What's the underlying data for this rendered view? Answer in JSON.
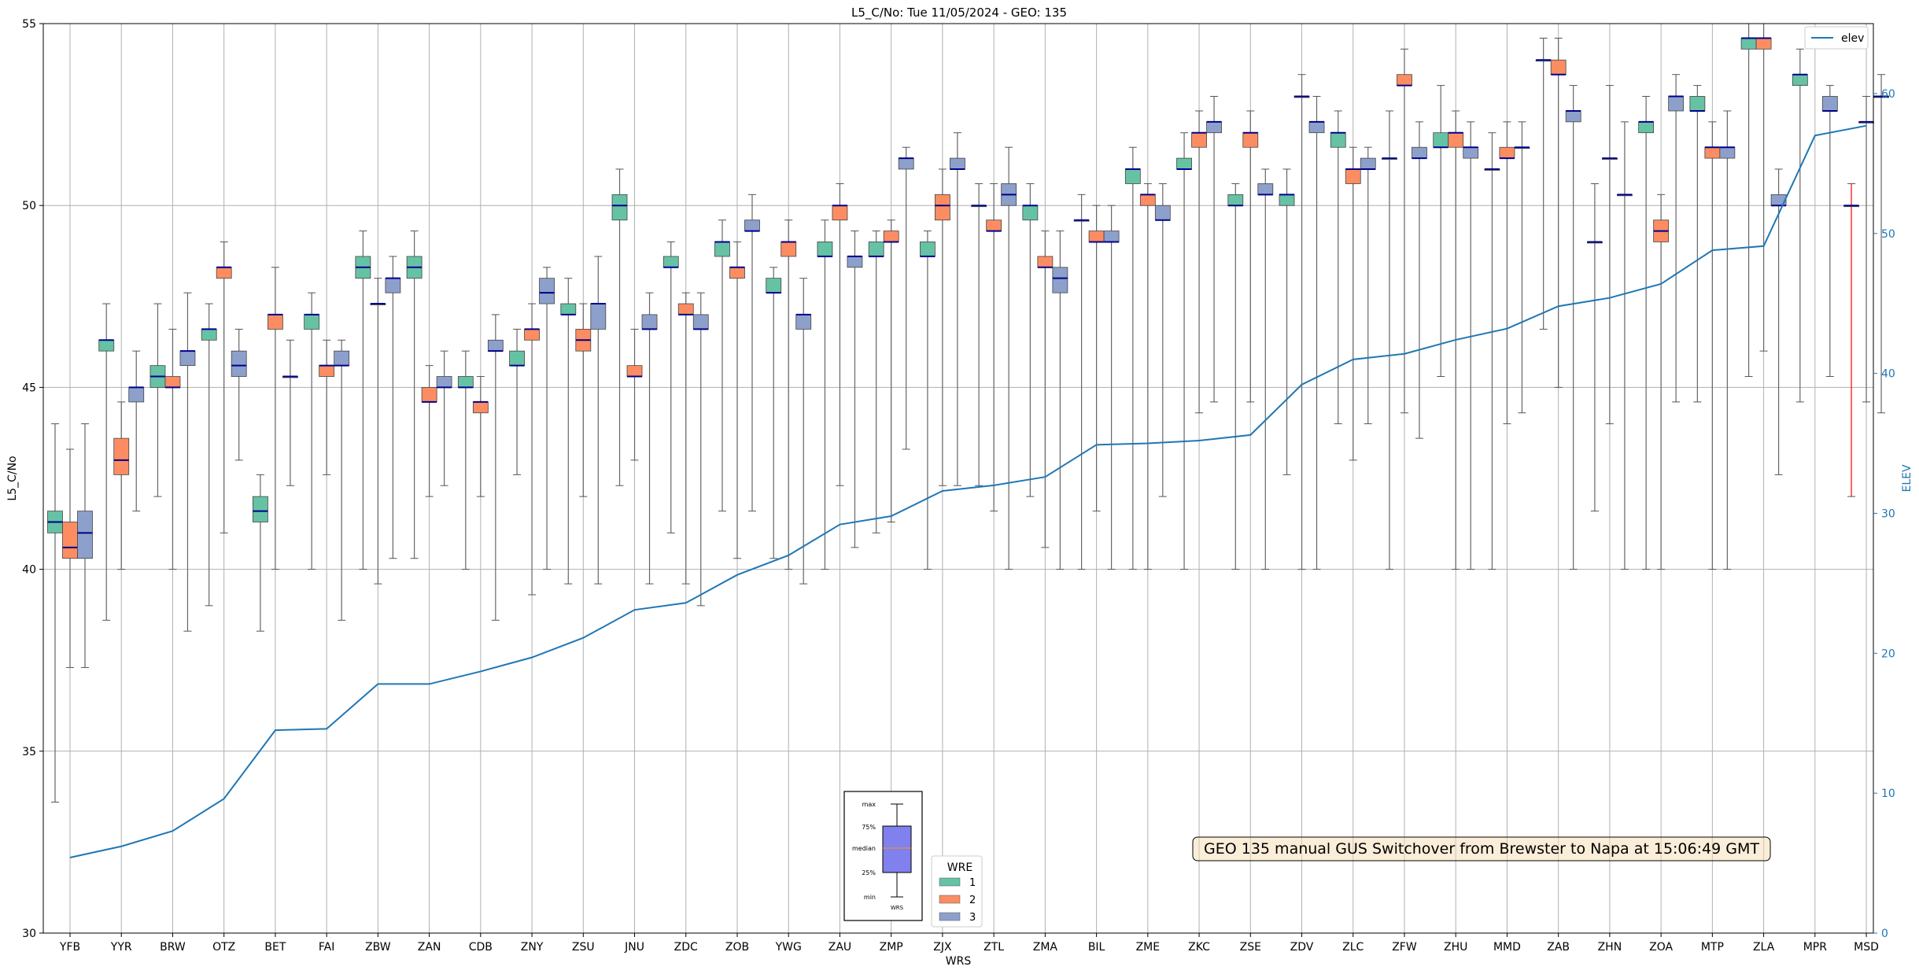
{
  "chart_data": {
    "type": "box",
    "title": "L5_C/No: Tue 11/05/2024 - GEO: 135",
    "xlabel": "WRS",
    "ylabel": "L5_C/No",
    "y2label": "ELEV",
    "ylim": [
      30,
      55
    ],
    "y2lim": [
      0,
      65
    ],
    "yticks": [
      30,
      35,
      40,
      45,
      50,
      55
    ],
    "y2ticks": [
      0,
      10,
      20,
      30,
      40,
      50,
      60
    ],
    "grid": true,
    "colors": {
      "1": "#66c2a5",
      "2": "#fc8d62",
      "3": "#8da0cb",
      "elev": "#1f77b4",
      "median": "#00008b",
      "msd_whisker": "#ff0000"
    },
    "categories": [
      "YFB",
      "YYR",
      "BRW",
      "OTZ",
      "BET",
      "FAI",
      "ZBW",
      "ZAN",
      "CDB",
      "ZNY",
      "ZSU",
      "JNU",
      "ZDC",
      "ZOB",
      "YWG",
      "ZAU",
      "ZMP",
      "ZJX",
      "ZTL",
      "ZMA",
      "BIL",
      "ZME",
      "ZKC",
      "ZSE",
      "ZDV",
      "ZLC",
      "ZFW",
      "ZHU",
      "MMD",
      "ZAB",
      "ZHN",
      "ZOA",
      "MTP",
      "ZLA",
      "MPR",
      "MSD"
    ],
    "elev": [
      5.4,
      6.2,
      7.3,
      9.6,
      14.5,
      14.6,
      17.8,
      17.8,
      18.7,
      19.7,
      21.1,
      23.1,
      23.6,
      25.6,
      27.0,
      29.2,
      29.8,
      31.6,
      32.0,
      32.6,
      34.9,
      35.0,
      35.2,
      35.6,
      39.2,
      41.0,
      41.4,
      42.4,
      43.2,
      44.8,
      45.4,
      46.4,
      48.8,
      49.1,
      57.0,
      57.7
    ],
    "boxes": [
      {
        "station": "YFB",
        "wre": 1,
        "min": 33.6,
        "q1": 41.0,
        "med": 41.3,
        "q3": 41.6,
        "max": 44.0
      },
      {
        "station": "YFB",
        "wre": 2,
        "min": 37.3,
        "q1": 40.3,
        "med": 40.6,
        "q3": 41.3,
        "max": 43.3
      },
      {
        "station": "YFB",
        "wre": 3,
        "min": 37.3,
        "q1": 40.3,
        "med": 41.0,
        "q3": 41.6,
        "max": 44.0
      },
      {
        "station": "YYR",
        "wre": 1,
        "min": 38.6,
        "q1": 46.0,
        "med": 46.3,
        "q3": 46.3,
        "max": 47.3
      },
      {
        "station": "YYR",
        "wre": 2,
        "min": 40.0,
        "q1": 42.6,
        "med": 43.0,
        "q3": 43.6,
        "max": 44.6
      },
      {
        "station": "YYR",
        "wre": 3,
        "min": 41.6,
        "q1": 44.6,
        "med": 45.0,
        "q3": 45.0,
        "max": 46.0
      },
      {
        "station": "BRW",
        "wre": 1,
        "min": 42.0,
        "q1": 45.0,
        "med": 45.3,
        "q3": 45.6,
        "max": 47.3
      },
      {
        "station": "BRW",
        "wre": 2,
        "min": 40.0,
        "q1": 45.0,
        "med": 45.0,
        "q3": 45.3,
        "max": 46.6
      },
      {
        "station": "BRW",
        "wre": 3,
        "min": 38.3,
        "q1": 45.6,
        "med": 46.0,
        "q3": 46.0,
        "max": 47.6
      },
      {
        "station": "OTZ",
        "wre": 1,
        "min": 39.0,
        "q1": 46.3,
        "med": 46.6,
        "q3": 46.6,
        "max": 47.3
      },
      {
        "station": "OTZ",
        "wre": 2,
        "min": 41.0,
        "q1": 48.0,
        "med": 48.3,
        "q3": 48.3,
        "max": 49.0
      },
      {
        "station": "OTZ",
        "wre": 3,
        "min": 43.0,
        "q1": 45.3,
        "med": 45.6,
        "q3": 46.0,
        "max": 46.6
      },
      {
        "station": "BET",
        "wre": 1,
        "min": 38.3,
        "q1": 41.3,
        "med": 41.6,
        "q3": 42.0,
        "max": 42.6
      },
      {
        "station": "BET",
        "wre": 2,
        "min": 40.0,
        "q1": 46.6,
        "med": 47.0,
        "q3": 47.0,
        "max": 48.3
      },
      {
        "station": "BET",
        "wre": 3,
        "min": 42.3,
        "q1": 45.3,
        "med": 45.3,
        "q3": 45.3,
        "max": 46.3
      },
      {
        "station": "FAI",
        "wre": 1,
        "min": 40.0,
        "q1": 46.6,
        "med": 47.0,
        "q3": 47.0,
        "max": 47.6
      },
      {
        "station": "FAI",
        "wre": 2,
        "min": 42.6,
        "q1": 45.3,
        "med": 45.6,
        "q3": 45.6,
        "max": 46.3
      },
      {
        "station": "FAI",
        "wre": 3,
        "min": 38.6,
        "q1": 45.6,
        "med": 45.6,
        "q3": 46.0,
        "max": 46.3
      },
      {
        "station": "ZBW",
        "wre": 1,
        "min": 40.0,
        "q1": 48.0,
        "med": 48.3,
        "q3": 48.6,
        "max": 49.3
      },
      {
        "station": "ZBW",
        "wre": 2,
        "min": 39.6,
        "q1": 47.3,
        "med": 47.3,
        "q3": 47.3,
        "max": 48.0
      },
      {
        "station": "ZBW",
        "wre": 3,
        "min": 40.3,
        "q1": 47.6,
        "med": 48.0,
        "q3": 48.0,
        "max": 48.6
      },
      {
        "station": "ZAN",
        "wre": 1,
        "min": 40.3,
        "q1": 48.0,
        "med": 48.3,
        "q3": 48.6,
        "max": 49.3
      },
      {
        "station": "ZAN",
        "wre": 2,
        "min": 42.0,
        "q1": 44.6,
        "med": 44.6,
        "q3": 45.0,
        "max": 45.6
      },
      {
        "station": "ZAN",
        "wre": 3,
        "min": 42.3,
        "q1": 45.0,
        "med": 45.0,
        "q3": 45.3,
        "max": 46.0
      },
      {
        "station": "CDB",
        "wre": 1,
        "min": 40.0,
        "q1": 45.0,
        "med": 45.0,
        "q3": 45.3,
        "max": 46.0
      },
      {
        "station": "CDB",
        "wre": 2,
        "min": 42.0,
        "q1": 44.3,
        "med": 44.6,
        "q3": 44.6,
        "max": 45.3
      },
      {
        "station": "CDB",
        "wre": 3,
        "min": 38.6,
        "q1": 46.0,
        "med": 46.0,
        "q3": 46.3,
        "max": 47.0
      },
      {
        "station": "ZNY",
        "wre": 1,
        "min": 42.6,
        "q1": 45.6,
        "med": 45.6,
        "q3": 46.0,
        "max": 46.6
      },
      {
        "station": "ZNY",
        "wre": 2,
        "min": 39.3,
        "q1": 46.3,
        "med": 46.6,
        "q3": 46.6,
        "max": 47.3
      },
      {
        "station": "ZNY",
        "wre": 3,
        "min": 40.0,
        "q1": 47.3,
        "med": 47.6,
        "q3": 48.0,
        "max": 48.3
      },
      {
        "station": "ZSU",
        "wre": 1,
        "min": 39.6,
        "q1": 47.0,
        "med": 47.0,
        "q3": 47.3,
        "max": 48.0
      },
      {
        "station": "ZSU",
        "wre": 2,
        "min": 42.0,
        "q1": 46.0,
        "med": 46.3,
        "q3": 46.6,
        "max": 47.3
      },
      {
        "station": "ZSU",
        "wre": 3,
        "min": 39.6,
        "q1": 46.6,
        "med": 47.3,
        "q3": 47.3,
        "max": 48.6
      },
      {
        "station": "JNU",
        "wre": 1,
        "min": 42.3,
        "q1": 49.6,
        "med": 50.0,
        "q3": 50.3,
        "max": 51.0
      },
      {
        "station": "JNU",
        "wre": 2,
        "min": 43.0,
        "q1": 45.3,
        "med": 45.3,
        "q3": 45.6,
        "max": 46.6
      },
      {
        "station": "JNU",
        "wre": 3,
        "min": 39.6,
        "q1": 46.6,
        "med": 46.6,
        "q3": 47.0,
        "max": 47.6
      },
      {
        "station": "ZDC",
        "wre": 1,
        "min": 41.0,
        "q1": 48.3,
        "med": 48.3,
        "q3": 48.6,
        "max": 49.0
      },
      {
        "station": "ZDC",
        "wre": 2,
        "min": 39.6,
        "q1": 47.0,
        "med": 47.0,
        "q3": 47.3,
        "max": 47.6
      },
      {
        "station": "ZDC",
        "wre": 3,
        "min": 39.0,
        "q1": 46.6,
        "med": 46.6,
        "q3": 47.0,
        "max": 47.6
      },
      {
        "station": "ZOB",
        "wre": 1,
        "min": 41.6,
        "q1": 48.6,
        "med": 49.0,
        "q3": 49.0,
        "max": 49.6
      },
      {
        "station": "ZOB",
        "wre": 2,
        "min": 40.3,
        "q1": 48.0,
        "med": 48.3,
        "q3": 48.3,
        "max": 49.0
      },
      {
        "station": "ZOB",
        "wre": 3,
        "min": 41.6,
        "q1": 49.3,
        "med": 49.3,
        "q3": 49.6,
        "max": 50.3
      },
      {
        "station": "YWG",
        "wre": 1,
        "min": 40.3,
        "q1": 47.6,
        "med": 47.6,
        "q3": 48.0,
        "max": 48.3
      },
      {
        "station": "YWG",
        "wre": 2,
        "min": 40.0,
        "q1": 48.6,
        "med": 49.0,
        "q3": 49.0,
        "max": 49.6
      },
      {
        "station": "YWG",
        "wre": 3,
        "min": 39.6,
        "q1": 46.6,
        "med": 47.0,
        "q3": 47.0,
        "max": 48.0
      },
      {
        "station": "ZAU",
        "wre": 1,
        "min": 40.0,
        "q1": 48.6,
        "med": 48.6,
        "q3": 49.0,
        "max": 49.6
      },
      {
        "station": "ZAU",
        "wre": 2,
        "min": 42.3,
        "q1": 49.6,
        "med": 50.0,
        "q3": 50.0,
        "max": 50.6
      },
      {
        "station": "ZAU",
        "wre": 3,
        "min": 40.6,
        "q1": 48.3,
        "med": 48.6,
        "q3": 48.6,
        "max": 49.3
      },
      {
        "station": "ZMP",
        "wre": 1,
        "min": 41.0,
        "q1": 48.6,
        "med": 48.6,
        "q3": 49.0,
        "max": 49.3
      },
      {
        "station": "ZMP",
        "wre": 2,
        "min": 41.3,
        "q1": 49.0,
        "med": 49.0,
        "q3": 49.3,
        "max": 49.6
      },
      {
        "station": "ZMP",
        "wre": 3,
        "min": 43.3,
        "q1": 51.0,
        "med": 51.3,
        "q3": 51.3,
        "max": 51.6
      },
      {
        "station": "ZJX",
        "wre": 1,
        "min": 40.0,
        "q1": 48.6,
        "med": 48.6,
        "q3": 49.0,
        "max": 49.3
      },
      {
        "station": "ZJX",
        "wre": 2,
        "min": 42.3,
        "q1": 49.6,
        "med": 50.0,
        "q3": 50.3,
        "max": 51.0
      },
      {
        "station": "ZJX",
        "wre": 3,
        "min": 42.3,
        "q1": 51.0,
        "med": 51.0,
        "q3": 51.3,
        "max": 52.0
      },
      {
        "station": "ZTL",
        "wre": 1,
        "min": 42.3,
        "q1": 50.0,
        "med": 50.0,
        "q3": 50.0,
        "max": 50.6
      },
      {
        "station": "ZTL",
        "wre": 2,
        "min": 41.6,
        "q1": 49.3,
        "med": 49.3,
        "q3": 49.6,
        "max": 50.6
      },
      {
        "station": "ZTL",
        "wre": 3,
        "min": 40.0,
        "q1": 50.0,
        "med": 50.3,
        "q3": 50.6,
        "max": 51.6
      },
      {
        "station": "ZMA",
        "wre": 1,
        "min": 42.0,
        "q1": 49.6,
        "med": 50.0,
        "q3": 50.0,
        "max": 50.6
      },
      {
        "station": "ZMA",
        "wre": 2,
        "min": 40.6,
        "q1": 48.3,
        "med": 48.3,
        "q3": 48.6,
        "max": 49.3
      },
      {
        "station": "ZMA",
        "wre": 3,
        "min": 40.0,
        "q1": 47.6,
        "med": 48.0,
        "q3": 48.3,
        "max": 49.3
      },
      {
        "station": "BIL",
        "wre": 1,
        "min": 40.0,
        "q1": 49.6,
        "med": 49.6,
        "q3": 49.6,
        "max": 50.3
      },
      {
        "station": "BIL",
        "wre": 2,
        "min": 41.6,
        "q1": 49.0,
        "med": 49.0,
        "q3": 49.3,
        "max": 50.0
      },
      {
        "station": "BIL",
        "wre": 3,
        "min": 40.0,
        "q1": 49.0,
        "med": 49.0,
        "q3": 49.3,
        "max": 50.0
      },
      {
        "station": "ZME",
        "wre": 1,
        "min": 40.0,
        "q1": 50.6,
        "med": 51.0,
        "q3": 51.0,
        "max": 51.6
      },
      {
        "station": "ZME",
        "wre": 2,
        "min": 40.0,
        "q1": 50.0,
        "med": 50.3,
        "q3": 50.3,
        "max": 50.6
      },
      {
        "station": "ZME",
        "wre": 3,
        "min": 42.0,
        "q1": 49.6,
        "med": 49.6,
        "q3": 50.0,
        "max": 50.6
      },
      {
        "station": "ZKC",
        "wre": 1,
        "min": 40.0,
        "q1": 51.0,
        "med": 51.0,
        "q3": 51.3,
        "max": 52.0
      },
      {
        "station": "ZKC",
        "wre": 2,
        "min": 44.3,
        "q1": 51.6,
        "med": 52.0,
        "q3": 52.0,
        "max": 52.6
      },
      {
        "station": "ZKC",
        "wre": 3,
        "min": 44.6,
        "q1": 52.0,
        "med": 52.3,
        "q3": 52.3,
        "max": 53.0
      },
      {
        "station": "ZSE",
        "wre": 1,
        "min": 40.0,
        "q1": 50.0,
        "med": 50.0,
        "q3": 50.3,
        "max": 50.6
      },
      {
        "station": "ZSE",
        "wre": 2,
        "min": 44.6,
        "q1": 51.6,
        "med": 52.0,
        "q3": 52.0,
        "max": 52.6
      },
      {
        "station": "ZSE",
        "wre": 3,
        "min": 40.0,
        "q1": 50.3,
        "med": 50.3,
        "q3": 50.6,
        "max": 51.0
      },
      {
        "station": "ZDV",
        "wre": 1,
        "min": 42.6,
        "q1": 50.0,
        "med": 50.3,
        "q3": 50.3,
        "max": 51.0
      },
      {
        "station": "ZDV",
        "wre": 2,
        "min": 40.0,
        "q1": 53.0,
        "med": 53.0,
        "q3": 53.0,
        "max": 53.6
      },
      {
        "station": "ZDV",
        "wre": 3,
        "min": 40.0,
        "q1": 52.0,
        "med": 52.3,
        "q3": 52.3,
        "max": 53.0
      },
      {
        "station": "ZLC",
        "wre": 1,
        "min": 44.0,
        "q1": 51.6,
        "med": 52.0,
        "q3": 52.0,
        "max": 52.6
      },
      {
        "station": "ZLC",
        "wre": 2,
        "min": 43.0,
        "q1": 50.6,
        "med": 51.0,
        "q3": 51.0,
        "max": 51.6
      },
      {
        "station": "ZLC",
        "wre": 3,
        "min": 44.0,
        "q1": 51.0,
        "med": 51.0,
        "q3": 51.3,
        "max": 51.6
      },
      {
        "station": "ZFW",
        "wre": 1,
        "min": 40.0,
        "q1": 51.3,
        "med": 51.3,
        "q3": 51.3,
        "max": 52.6
      },
      {
        "station": "ZFW",
        "wre": 2,
        "min": 44.3,
        "q1": 53.3,
        "med": 53.3,
        "q3": 53.6,
        "max": 54.3
      },
      {
        "station": "ZFW",
        "wre": 3,
        "min": 43.6,
        "q1": 51.3,
        "med": 51.3,
        "q3": 51.6,
        "max": 52.3
      },
      {
        "station": "ZHU",
        "wre": 1,
        "min": 45.3,
        "q1": 51.6,
        "med": 51.6,
        "q3": 52.0,
        "max": 53.3
      },
      {
        "station": "ZHU",
        "wre": 2,
        "min": 40.0,
        "q1": 51.6,
        "med": 52.0,
        "q3": 52.0,
        "max": 52.6
      },
      {
        "station": "ZHU",
        "wre": 3,
        "min": 40.0,
        "q1": 51.3,
        "med": 51.6,
        "q3": 51.6,
        "max": 52.3
      },
      {
        "station": "MMD",
        "wre": 1,
        "min": 40.0,
        "q1": 51.0,
        "med": 51.0,
        "q3": 51.0,
        "max": 52.0
      },
      {
        "station": "MMD",
        "wre": 2,
        "min": 44.0,
        "q1": 51.3,
        "med": 51.3,
        "q3": 51.6,
        "max": 52.3
      },
      {
        "station": "MMD",
        "wre": 3,
        "min": 44.3,
        "q1": 51.6,
        "med": 51.6,
        "q3": 51.6,
        "max": 52.3
      },
      {
        "station": "ZAB",
        "wre": 1,
        "min": 46.6,
        "q1": 54.0,
        "med": 54.0,
        "q3": 54.0,
        "max": 54.6
      },
      {
        "station": "ZAB",
        "wre": 2,
        "min": 45.0,
        "q1": 53.6,
        "med": 53.6,
        "q3": 54.0,
        "max": 54.6
      },
      {
        "station": "ZAB",
        "wre": 3,
        "min": 40.0,
        "q1": 52.3,
        "med": 52.6,
        "q3": 52.6,
        "max": 53.3
      },
      {
        "station": "ZHN",
        "wre": 1,
        "min": 41.6,
        "q1": 49.0,
        "med": 49.0,
        "q3": 49.0,
        "max": 50.6
      },
      {
        "station": "ZHN",
        "wre": 2,
        "min": 44.0,
        "q1": 51.3,
        "med": 51.3,
        "q3": 51.3,
        "max": 53.3
      },
      {
        "station": "ZHN",
        "wre": 3,
        "min": 40.0,
        "q1": 50.3,
        "med": 50.3,
        "q3": 50.3,
        "max": 52.3
      },
      {
        "station": "ZOA",
        "wre": 1,
        "min": 40.0,
        "q1": 52.0,
        "med": 52.3,
        "q3": 52.3,
        "max": 53.0
      },
      {
        "station": "ZOA",
        "wre": 2,
        "min": 40.0,
        "q1": 49.0,
        "med": 49.3,
        "q3": 49.6,
        "max": 50.3
      },
      {
        "station": "ZOA",
        "wre": 3,
        "min": 44.6,
        "q1": 52.6,
        "med": 53.0,
        "q3": 53.0,
        "max": 53.6
      },
      {
        "station": "MTP",
        "wre": 1,
        "min": 44.6,
        "q1": 52.6,
        "med": 52.6,
        "q3": 53.0,
        "max": 53.3
      },
      {
        "station": "MTP",
        "wre": 2,
        "min": 40.0,
        "q1": 51.3,
        "med": 51.6,
        "q3": 51.6,
        "max": 52.3
      },
      {
        "station": "MTP",
        "wre": 3,
        "min": 40.0,
        "q1": 51.3,
        "med": 51.6,
        "q3": 51.6,
        "max": 52.6
      },
      {
        "station": "ZLA",
        "wre": 1,
        "min": 45.3,
        "q1": 54.3,
        "med": 54.6,
        "q3": 54.6,
        "max": 55.0
      },
      {
        "station": "ZLA",
        "wre": 2,
        "min": 46.0,
        "q1": 54.3,
        "med": 54.6,
        "q3": 54.6,
        "max": 55.0
      },
      {
        "station": "ZLA",
        "wre": 3,
        "min": 42.6,
        "q1": 50.0,
        "med": 50.0,
        "q3": 50.3,
        "max": 51.0
      },
      {
        "station": "MPR",
        "wre": 1,
        "min": 44.6,
        "q1": 53.3,
        "med": 53.6,
        "q3": 53.6,
        "max": 54.3
      },
      {
        "station": "MPR",
        "wre": 3,
        "min": 45.3,
        "q1": 52.6,
        "med": 52.6,
        "q3": 53.0,
        "max": 53.3
      },
      {
        "station": "MSD",
        "wre": 1,
        "min": 42.0,
        "q1": 50.0,
        "med": 50.0,
        "q3": 50.0,
        "max": 50.6
      },
      {
        "station": "MSD",
        "wre": 2,
        "min": 44.6,
        "q1": 52.3,
        "med": 52.3,
        "q3": 52.3,
        "max": 53.0
      },
      {
        "station": "MSD",
        "wre": 3,
        "min": 44.3,
        "q1": 53.0,
        "med": 53.0,
        "q3": 53.0,
        "max": 53.6
      }
    ],
    "legend_elev": {
      "label": "elev",
      "placement": "top-right"
    },
    "legend_wre": {
      "title": "WRE",
      "entries": [
        "1",
        "2",
        "3"
      ],
      "placement": "bottom-center"
    },
    "key_inset": {
      "labels": [
        "max",
        "75%",
        "median",
        "25%",
        "min"
      ],
      "xlabel": "WRS"
    },
    "annotation": "GEO 135 manual GUS Switchover from Brewster to Napa at 15:06:49 GMT"
  }
}
